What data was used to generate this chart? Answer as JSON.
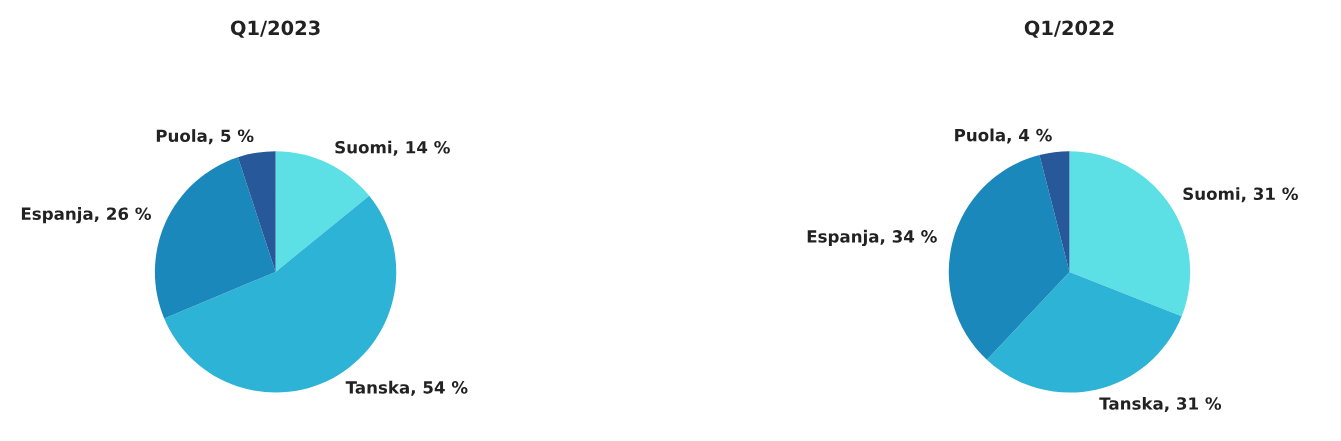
{
  "chart_data": [
    {
      "type": "pie",
      "title": "Q1/2023",
      "categories": [
        "Suomi",
        "Tanska",
        "Espanja",
        "Puola"
      ],
      "values": [
        14,
        54,
        26,
        5
      ],
      "value_labels": [
        "14 %",
        "54 %",
        "26 %",
        "5 %"
      ],
      "colors": [
        "#5ce0e6",
        "#2db3d6",
        "#1a88bb",
        "#27589a"
      ]
    },
    {
      "type": "pie",
      "title": "Q1/2022",
      "categories": [
        "Suomi",
        "Tanska",
        "Espanja",
        "Puola"
      ],
      "values": [
        31,
        31,
        34,
        4
      ],
      "value_labels": [
        "31 %",
        "31 %",
        "34 %",
        "4 %"
      ],
      "colors": [
        "#5ce0e6",
        "#2db3d6",
        "#1a88bb",
        "#27589a"
      ]
    }
  ]
}
